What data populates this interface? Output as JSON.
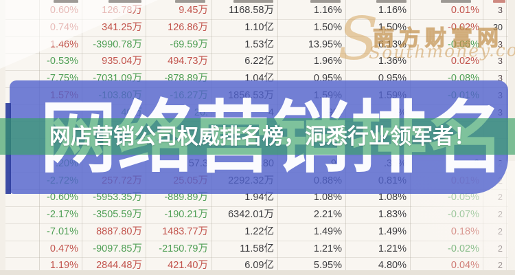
{
  "banner": {
    "label": "网店营销公司权威排名榜，洞悉行业领军者！"
  },
  "backdrop_title": "网络营销排名",
  "watermark": {
    "swirl": "S",
    "site_name": "南方财富网",
    "site_domain": "Southmoney.com"
  },
  "colors": {
    "up_red": "#c2544d",
    "down_green": "#4f9f55",
    "neutral_dark": "#3d3d40",
    "right_col_gray": "#5a4c50",
    "overlay_blue": "#5062cd",
    "banner_green": "#34a062",
    "watermark_gold": "#c59a62"
  },
  "table": {
    "rows": [
      {
        "cells": [
          "0.60%",
          "126.78万",
          "9.45万",
          "1168.58万",
          "1.16%",
          "1.16%",
          "0.01%",
          "3"
        ],
        "tones": [
          "u",
          "u",
          "u",
          "n",
          "n",
          "n",
          "u",
          "g"
        ]
      },
      {
        "cells": [
          "0.74%",
          "341.25万",
          "126.86万",
          "1.10亿",
          "1.50%",
          "1.50%",
          "-0.02%",
          "30"
        ],
        "tones": [
          "u",
          "u",
          "u",
          "n",
          "n",
          "n",
          "u",
          "n"
        ]
      },
      {
        "cells": [
          "1.46%",
          "-3990.78万",
          "-69.59万",
          "1.53亿",
          "13.95%",
          "6.13%",
          "-0.06%",
          "3"
        ],
        "tones": [
          "u",
          "d",
          "d",
          "n",
          "n",
          "n",
          "d",
          "g"
        ]
      },
      {
        "cells": [
          "-0.53%",
          "935.04万",
          "494.73万",
          "6.22亿",
          "1.96%",
          "1.36%",
          "0.02%",
          "3"
        ],
        "tones": [
          "d",
          "u",
          "u",
          "n",
          "n",
          "n",
          "u",
          "g"
        ]
      },
      {
        "cells": [
          "-7.75%",
          "-7031.09万",
          "-878.89万",
          "1.04亿",
          "0.95%",
          "0.95%",
          "-0.08%",
          "3"
        ],
        "tones": [
          "d",
          "d",
          "d",
          "n",
          "n",
          "n",
          "d",
          "g"
        ]
      },
      {
        "cells": [
          "1.57%",
          "-103.80万",
          "-16.27万",
          "1856.53万",
          "1.59%",
          "1.59%",
          "-0.01%",
          "3"
        ],
        "tones": [
          "u",
          "d",
          "d",
          "n",
          "n",
          "n",
          "d",
          "g"
        ]
      },
      {
        "cells": [
          "",
          "40万",
          "26.",
          "4",
          "9%",
          "1%",
          "",
          "3"
        ],
        "tones": [
          "n",
          "d",
          "d",
          "n",
          "n",
          "n",
          "n",
          "g"
        ]
      },
      {
        "cells": [
          "",
          "",
          "",
          "",
          "",
          "",
          "",
          ""
        ],
        "tones": [
          "n",
          "n",
          "n",
          "n",
          "n",
          "n",
          "n",
          "g"
        ]
      },
      {
        "cells": [
          "",
          "",
          "",
          "",
          "",
          "",
          "",
          ""
        ],
        "tones": [
          "n",
          "n",
          "n",
          "n",
          "n",
          "n",
          "n",
          "g"
        ]
      },
      {
        "cells": [
          ".20%",
          "",
          "57.3",
          ".80",
          "94",
          ".35%",
          "6",
          "2"
        ],
        "tones": [
          "d",
          "n",
          "n",
          "n",
          "n",
          "n",
          "d",
          "g"
        ]
      },
      {
        "cells": [
          "-2.72%",
          "257.72万",
          "25.05万",
          "2292.32万",
          "0.88%",
          "0.81%",
          "0.01%",
          "2"
        ],
        "tones": [
          "d",
          "u",
          "u",
          "n",
          "n",
          "n",
          "u",
          "g"
        ]
      },
      {
        "cells": [
          "-0.60%",
          "-5953.35万",
          "-889.89万",
          "1.94亿",
          "1.08%",
          "1.08%",
          "-0.05%",
          "2"
        ],
        "tones": [
          "d",
          "d",
          "d",
          "n",
          "n",
          "n",
          "d",
          "g"
        ]
      },
      {
        "cells": [
          "-2.17%",
          "-3505.59万",
          "-190.21万",
          "6342.01万",
          "2.21%",
          "1.83%",
          "-0.07%",
          "2"
        ],
        "tones": [
          "d",
          "d",
          "d",
          "n",
          "n",
          "n",
          "d",
          "g"
        ]
      },
      {
        "cells": [
          "-7.01%",
          "8887.80万",
          "1483.77万",
          "1.22亿",
          "1.49%",
          "1.49%",
          "0.18%",
          "2"
        ],
        "tones": [
          "d",
          "u",
          "u",
          "n",
          "n",
          "n",
          "u",
          "g"
        ]
      },
      {
        "cells": [
          "0.47%",
          "-9097.85万",
          "-2150.79万",
          "11.58亿",
          "1.21%",
          "1.21%",
          "-0.02%",
          "2"
        ],
        "tones": [
          "u",
          "d",
          "d",
          "n",
          "n",
          "n",
          "d",
          "g"
        ]
      },
      {
        "cells": [
          "1.19%",
          "2844.48万",
          "421.40万",
          "6.09亿",
          "5.95%",
          "4.80%",
          "0.04%",
          "2"
        ],
        "tones": [
          "u",
          "u",
          "u",
          "n",
          "n",
          "n",
          "u",
          "g"
        ]
      }
    ]
  }
}
